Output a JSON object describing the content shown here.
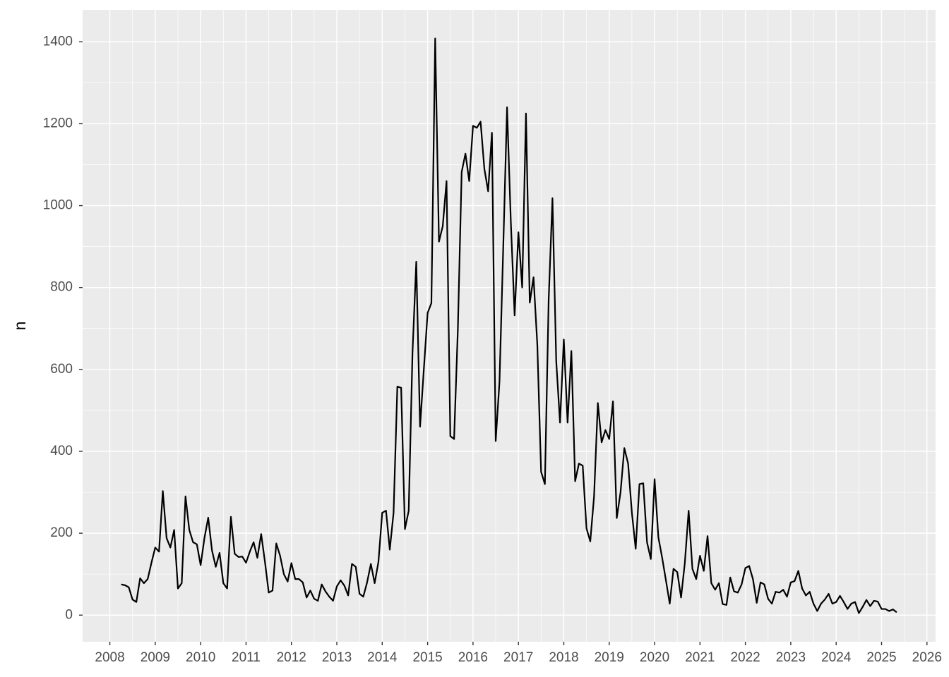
{
  "chart_data": {
    "type": "line",
    "y_label": "n",
    "color": "#000000",
    "grid": true,
    "x": [
      "2008-04",
      "2008-05",
      "2008-06",
      "2008-07",
      "2008-08",
      "2008-09",
      "2008-10",
      "2008-11",
      "2008-12",
      "2009-01",
      "2009-02",
      "2009-03",
      "2009-04",
      "2009-05",
      "2009-06",
      "2009-07",
      "2009-08",
      "2009-09",
      "2009-10",
      "2009-11",
      "2009-12",
      "2010-01",
      "2010-02",
      "2010-03",
      "2010-04",
      "2010-05",
      "2010-06",
      "2010-07",
      "2010-08",
      "2010-09",
      "2010-10",
      "2010-11",
      "2010-12",
      "2011-01",
      "2011-02",
      "2011-03",
      "2011-04",
      "2011-05",
      "2011-06",
      "2011-07",
      "2011-08",
      "2011-09",
      "2011-10",
      "2011-11",
      "2011-12",
      "2012-01",
      "2012-02",
      "2012-03",
      "2012-04",
      "2012-05",
      "2012-06",
      "2012-07",
      "2012-08",
      "2012-09",
      "2012-10",
      "2012-11",
      "2012-12",
      "2013-01",
      "2013-02",
      "2013-03",
      "2013-04",
      "2013-05",
      "2013-06",
      "2013-07",
      "2013-08",
      "2013-09",
      "2013-10",
      "2013-11",
      "2013-12",
      "2014-01",
      "2014-02",
      "2014-03",
      "2014-04",
      "2014-05",
      "2014-06",
      "2014-07",
      "2014-08",
      "2014-09",
      "2014-10",
      "2014-11",
      "2014-12",
      "2015-01",
      "2015-02",
      "2015-03",
      "2015-04",
      "2015-05",
      "2015-06",
      "2015-07",
      "2015-08",
      "2015-09",
      "2015-10",
      "2015-11",
      "2015-12",
      "2016-01",
      "2016-02",
      "2016-03",
      "2016-04",
      "2016-05",
      "2016-06",
      "2016-07",
      "2016-08",
      "2016-09",
      "2016-10",
      "2016-11",
      "2016-12",
      "2017-01",
      "2017-02",
      "2017-03",
      "2017-04",
      "2017-05",
      "2017-06",
      "2017-07",
      "2017-08",
      "2017-09",
      "2017-10",
      "2017-11",
      "2017-12",
      "2018-01",
      "2018-02",
      "2018-03",
      "2018-04",
      "2018-05",
      "2018-06",
      "2018-07",
      "2018-08",
      "2018-09",
      "2018-10",
      "2018-11",
      "2018-12",
      "2019-01",
      "2019-02",
      "2019-03",
      "2019-04",
      "2019-05",
      "2019-06",
      "2019-07",
      "2019-08",
      "2019-09",
      "2019-10",
      "2019-11",
      "2019-12",
      "2020-01",
      "2020-02",
      "2020-03",
      "2020-04",
      "2020-05",
      "2020-06",
      "2020-07",
      "2020-08",
      "2020-09",
      "2020-10",
      "2020-11",
      "2020-12",
      "2021-01",
      "2021-02",
      "2021-03",
      "2021-04",
      "2021-05",
      "2021-06",
      "2021-07",
      "2021-08",
      "2021-09",
      "2021-10",
      "2021-11",
      "2021-12",
      "2022-01",
      "2022-02",
      "2022-03",
      "2022-04",
      "2022-05",
      "2022-06",
      "2022-07",
      "2022-08",
      "2022-09",
      "2022-10",
      "2022-11",
      "2022-12",
      "2023-01",
      "2023-02",
      "2023-03",
      "2023-04",
      "2023-05",
      "2023-06",
      "2023-07",
      "2023-08",
      "2023-09",
      "2023-10",
      "2023-11",
      "2023-12",
      "2024-01",
      "2024-02",
      "2024-03",
      "2024-04",
      "2024-05",
      "2024-06",
      "2024-07",
      "2024-08",
      "2024-09",
      "2024-10",
      "2024-11",
      "2024-12",
      "2025-01",
      "2025-02",
      "2025-03",
      "2025-04",
      "2025-05"
    ],
    "values": [
      75,
      73,
      68,
      38,
      32,
      90,
      78,
      88,
      128,
      165,
      155,
      303,
      188,
      165,
      208,
      65,
      78,
      290,
      208,
      178,
      173,
      122,
      188,
      238,
      158,
      118,
      152,
      78,
      65,
      240,
      150,
      142,
      143,
      128,
      155,
      178,
      140,
      198,
      130,
      55,
      60,
      175,
      145,
      100,
      82,
      127,
      88,
      88,
      80,
      43,
      60,
      40,
      35,
      75,
      58,
      45,
      35,
      70,
      85,
      72,
      48,
      125,
      118,
      52,
      45,
      80,
      125,
      78,
      130,
      250,
      255,
      160,
      250,
      558,
      555,
      210,
      255,
      640,
      863,
      460,
      600,
      738,
      762,
      1408,
      912,
      950,
      1060,
      437,
      430,
      700,
      1082,
      1127,
      1060,
      1195,
      1190,
      1205,
      1090,
      1035,
      1178,
      425,
      570,
      900,
      1240,
      960,
      732,
      935,
      800,
      1225,
      763,
      825,
      660,
      350,
      320,
      770,
      1018,
      620,
      470,
      673,
      470,
      645,
      327,
      370,
      365,
      212,
      180,
      290,
      518,
      422,
      452,
      430,
      522,
      237,
      300,
      408,
      370,
      250,
      162,
      320,
      322,
      178,
      137,
      332,
      190,
      140,
      85,
      28,
      113,
      105,
      43,
      128,
      255,
      113,
      88,
      145,
      108,
      193,
      78,
      62,
      78,
      27,
      25,
      92,
      58,
      55,
      75,
      115,
      120,
      88,
      30,
      80,
      75,
      40,
      28,
      57,
      55,
      62,
      45,
      80,
      83,
      108,
      65,
      48,
      57,
      28,
      10,
      28,
      38,
      52,
      28,
      32,
      47,
      32,
      15,
      28,
      32,
      5,
      20,
      37,
      22,
      35,
      33,
      15,
      15,
      10,
      14,
      7
    ],
    "xlim": [
      2007.4,
      2026.19
    ],
    "xticks": [
      2008,
      2009,
      2010,
      2011,
      2012,
      2013,
      2014,
      2015,
      2016,
      2017,
      2018,
      2019,
      2020,
      2021,
      2022,
      2023,
      2024,
      2025,
      2026
    ],
    "ylim": [
      -65,
      1478
    ],
    "yticks": [
      0,
      200,
      400,
      600,
      800,
      1000,
      1200,
      1400
    ]
  }
}
